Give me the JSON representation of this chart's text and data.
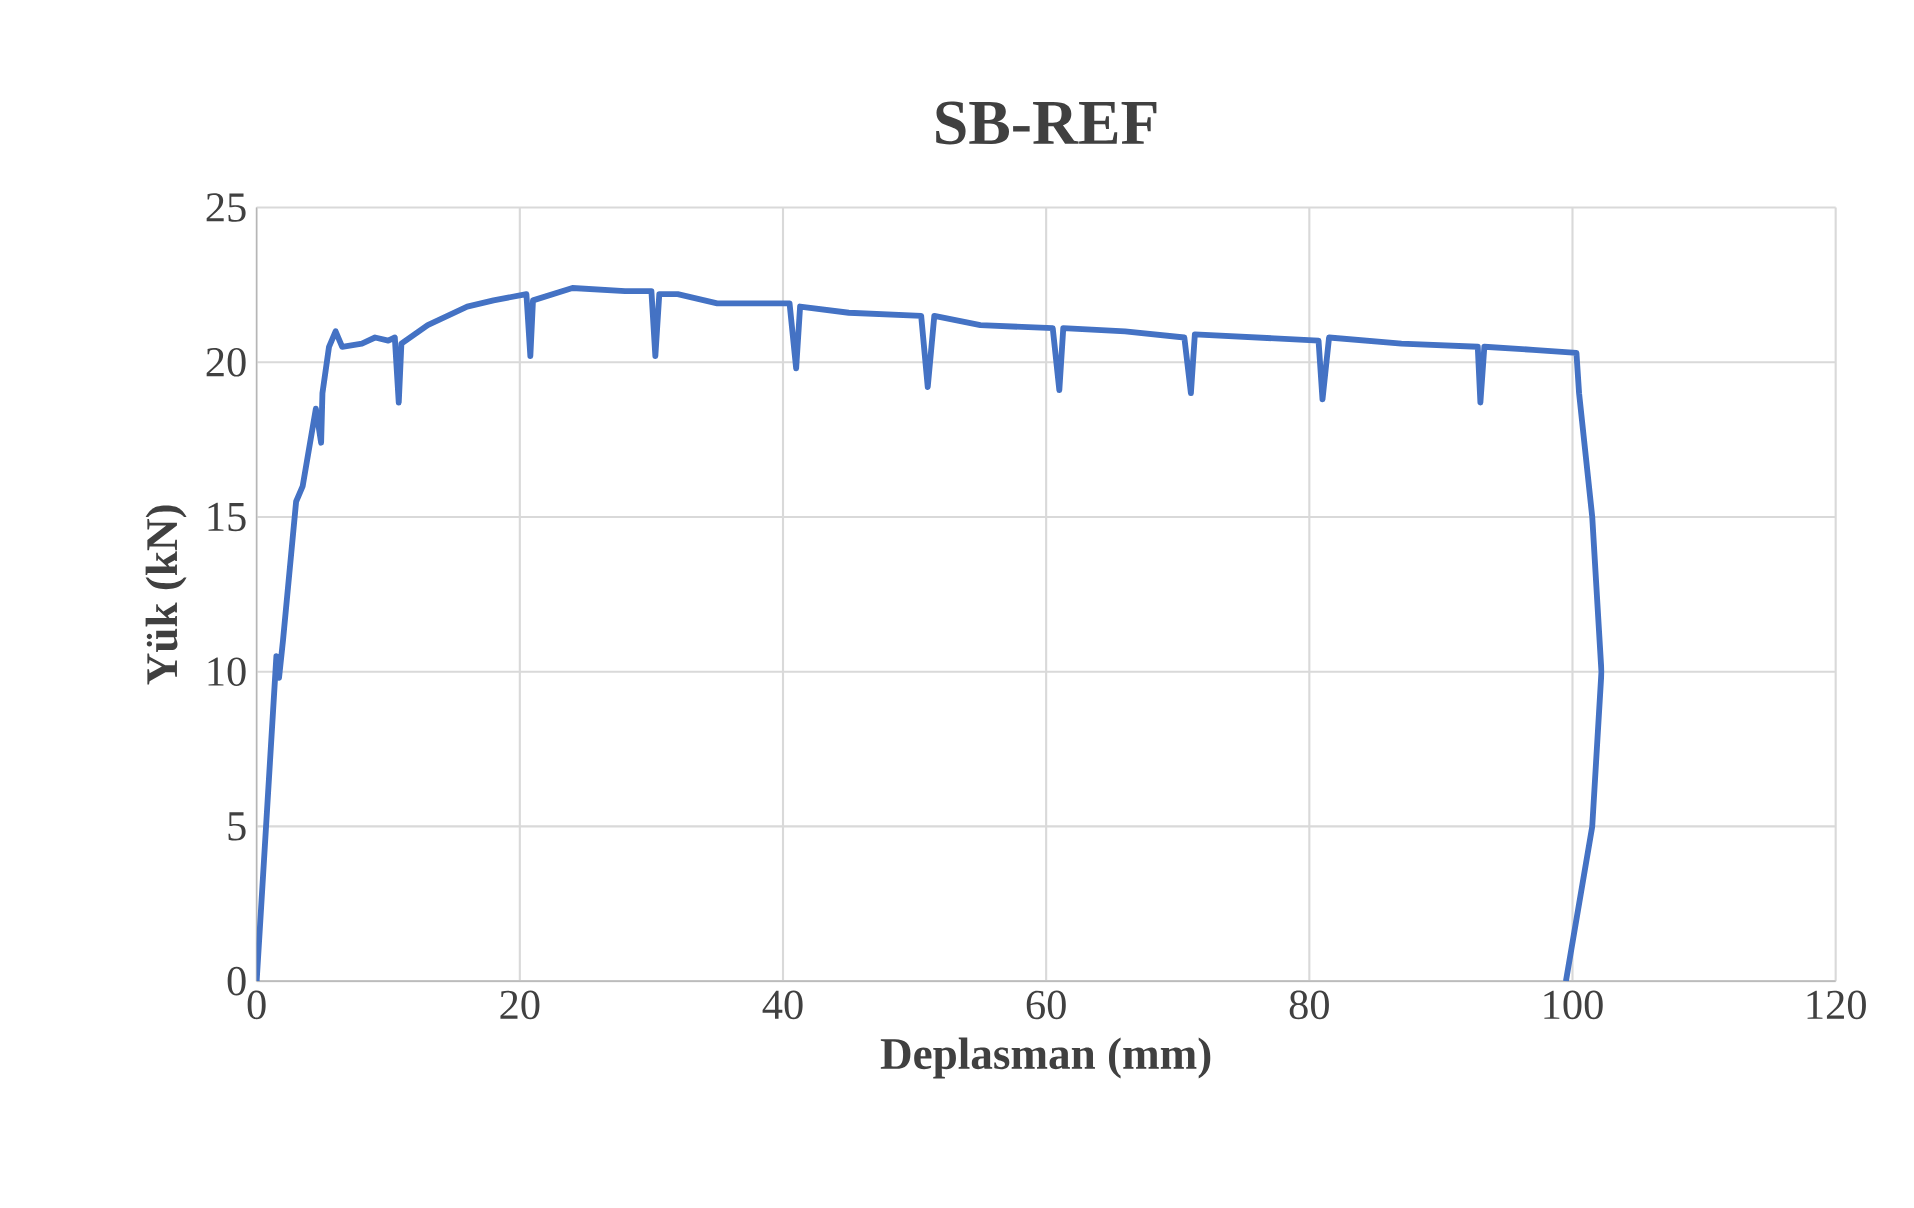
{
  "chart_data": {
    "type": "line",
    "title": "SB-REF",
    "xlabel": "Deplasman (mm)",
    "ylabel": "Yük (kN)",
    "xlim": [
      0,
      120
    ],
    "xticks": [
      0,
      20,
      40,
      60,
      80,
      100,
      120
    ],
    "ylim": [
      0,
      25
    ],
    "yticks": [
      0,
      5,
      10,
      15,
      20,
      25
    ],
    "grid": true,
    "marker": "none",
    "line_style": "solid",
    "series": [
      {
        "color": "#4472c4",
        "x": [
          0,
          1.5,
          1.7,
          2,
          3,
          3.5,
          4.5,
          4.9,
          5,
          5.5,
          6,
          6.5,
          8,
          9,
          10,
          10.5,
          10.8,
          11,
          13,
          16,
          18,
          20.5,
          20.8,
          21,
          24,
          28,
          30,
          30.3,
          30.6,
          32,
          35,
          40.5,
          41,
          41.3,
          45,
          50.5,
          51,
          51.5,
          55,
          60.5,
          61,
          61.3,
          66,
          70.5,
          71,
          71.3,
          76,
          80.7,
          81,
          81.5,
          87,
          92.8,
          93,
          93.3,
          97,
          100.3,
          100.5,
          101.5,
          102.2,
          101.5,
          99.5
        ],
        "values": [
          0,
          10.5,
          9.8,
          11,
          15.5,
          16,
          18.5,
          17.4,
          19,
          20.5,
          21,
          20.5,
          20.6,
          20.8,
          20.7,
          20.8,
          18.7,
          20.6,
          21.2,
          21.8,
          22,
          22.2,
          20.2,
          22,
          22.4,
          22.3,
          22.3,
          20.2,
          22.2,
          22.2,
          21.9,
          21.9,
          19.8,
          21.8,
          21.6,
          21.5,
          19.2,
          21.5,
          21.2,
          21.1,
          19.1,
          21.1,
          21,
          20.8,
          19,
          20.9,
          20.8,
          20.7,
          18.8,
          20.8,
          20.6,
          20.5,
          18.7,
          20.5,
          20.4,
          20.3,
          19,
          15,
          10,
          5,
          0
        ]
      }
    ]
  }
}
